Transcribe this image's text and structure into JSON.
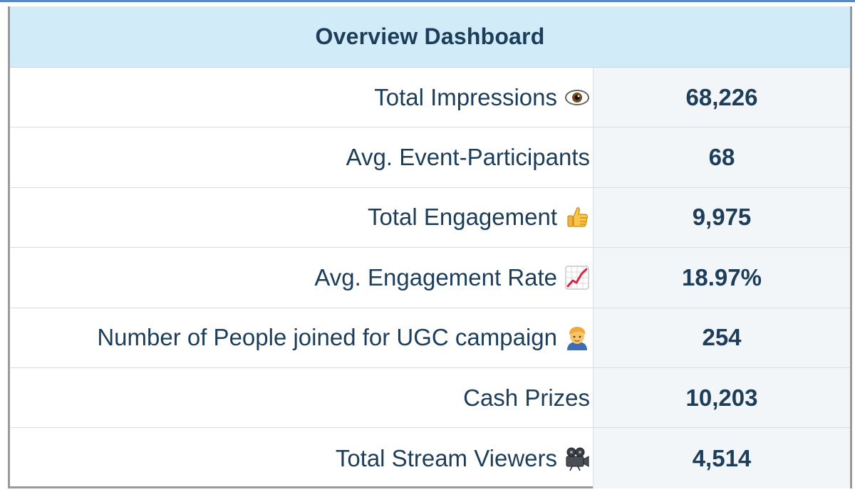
{
  "dashboard": {
    "title": "Overview Dashboard",
    "rows": [
      {
        "label": "Total Impressions",
        "icon": "eye-icon",
        "value": "68,226"
      },
      {
        "label": "Avg. Event-Participants",
        "icon": "",
        "value": "68"
      },
      {
        "label": "Total Engagement",
        "icon": "thumbs-up-icon",
        "value": "9,975"
      },
      {
        "label": "Avg. Engagement Rate",
        "icon": "chart-increasing-icon",
        "value": "18.97%"
      },
      {
        "label": "Number of People joined for UGC campaign",
        "icon": "person-icon",
        "value": "254"
      },
      {
        "label": "Cash Prizes",
        "icon": "",
        "value": "10,203"
      },
      {
        "label": "Total Stream Viewers",
        "icon": "movie-camera-icon",
        "value": "4,514"
      }
    ]
  },
  "colors": {
    "header_bg": "#d1ebf9",
    "text": "#1c3e5b",
    "value_bg": "#f3f6f9",
    "top_rule": "#5b86c9",
    "frame_border": "#9a9a9a"
  }
}
